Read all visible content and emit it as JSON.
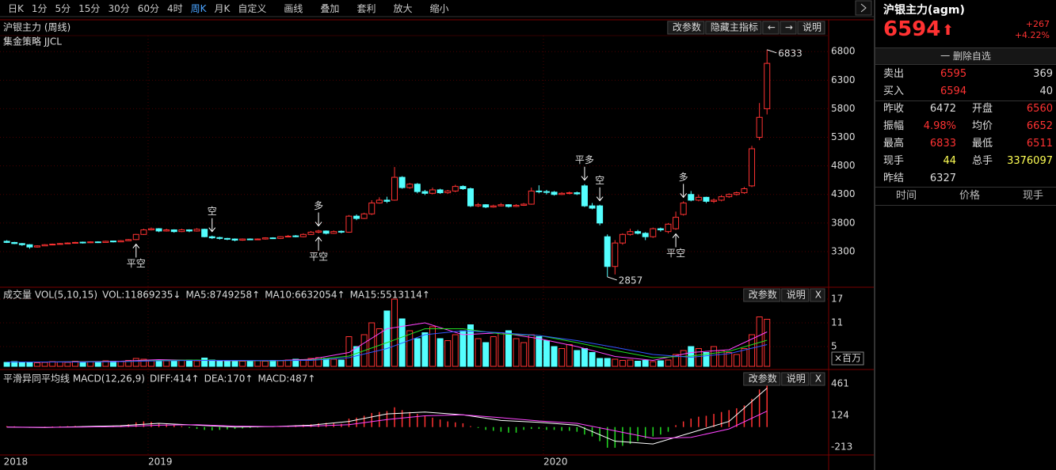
{
  "toolbar": {
    "items": [
      "日K",
      "1分",
      "5分",
      "15分",
      "30分",
      "60分",
      "4时",
      "周K",
      "月K",
      "自定义",
      "画线",
      "叠加",
      "套利",
      "放大",
      "缩小"
    ],
    "active": "周K"
  },
  "chart_data": {
    "type": "candlestick",
    "title": "沪银主力 (周线)",
    "indicator": "集金策略 JJCL",
    "buttons": [
      "改参数",
      "隐藏主指标",
      "←",
      "→",
      "说明"
    ],
    "up_color": "#ff3232",
    "down_color": "#54ffff",
    "grid": true,
    "open": [
      3480,
      3460,
      3440,
      3420,
      3380,
      3400,
      3420,
      3430,
      3440,
      3450,
      3465,
      3455,
      3470,
      3460,
      3485,
      3470,
      3490,
      3510,
      3600,
      3680,
      3700,
      3660,
      3680,
      3650,
      3680,
      3660,
      3690,
      3560,
      3545,
      3530,
      3520,
      3500,
      3520,
      3510,
      3520,
      3540,
      3530,
      3560,
      3575,
      3560,
      3600,
      3640,
      3660,
      3620,
      3655,
      3640,
      3920,
      3880,
      3960,
      4150,
      4200,
      4200,
      4600,
      4420,
      4480,
      4350,
      4320,
      4380,
      4330,
      4360,
      4440,
      4400,
      4100,
      4120,
      4080,
      4100,
      4120,
      4090,
      4110,
      4130,
      4360,
      4350,
      4340,
      4300,
      4320,
      4330,
      4450,
      4100,
      4100,
      3560,
      3040,
      3450,
      3600,
      3650,
      3620,
      3560,
      3700,
      3650,
      3700,
      3950,
      4300,
      4200,
      4250,
      4180,
      4200,
      4260,
      4300,
      4330,
      4450,
      5300,
      5800
    ],
    "high": [
      3500,
      3470,
      3450,
      3430,
      3410,
      3430,
      3440,
      3450,
      3460,
      3470,
      3475,
      3480,
      3480,
      3490,
      3490,
      3500,
      3520,
      3610,
      3700,
      3720,
      3710,
      3700,
      3690,
      3700,
      3690,
      3710,
      3700,
      3580,
      3560,
      3540,
      3530,
      3530,
      3530,
      3530,
      3550,
      3550,
      3570,
      3590,
      3590,
      3620,
      3660,
      3680,
      3670,
      3670,
      3670,
      3940,
      3950,
      3980,
      4200,
      4250,
      4260,
      4780,
      4620,
      4500,
      4500,
      4380,
      4420,
      4400,
      4380,
      4470,
      4460,
      4420,
      4150,
      4130,
      4120,
      4150,
      4130,
      4130,
      4150,
      4420,
      4460,
      4380,
      4360,
      4340,
      4350,
      4350,
      4480,
      4150,
      4120,
      3600,
      3500,
      3620,
      3700,
      3680,
      3640,
      3720,
      3720,
      3800,
      4000,
      4180,
      4360,
      4300,
      4260,
      4230,
      4290,
      4320,
      4350,
      4430,
      5150,
      5900,
      6833
    ],
    "low": [
      3450,
      3430,
      3400,
      3350,
      3370,
      3400,
      3420,
      3430,
      3440,
      3445,
      3440,
      3450,
      3450,
      3460,
      3460,
      3465,
      3485,
      3500,
      3590,
      3670,
      3640,
      3650,
      3630,
      3640,
      3640,
      3650,
      3550,
      3520,
      3510,
      3500,
      3480,
      3490,
      3500,
      3500,
      3510,
      3520,
      3520,
      3550,
      3550,
      3550,
      3590,
      3620,
      3600,
      3610,
      3620,
      3630,
      3850,
      3870,
      3940,
      4140,
      4150,
      4190,
      4400,
      4400,
      4320,
      4290,
      4300,
      4310,
      4310,
      4340,
      4380,
      4080,
      4080,
      4060,
      4070,
      4090,
      4070,
      4080,
      4100,
      4120,
      4320,
      4300,
      4280,
      4290,
      4300,
      4290,
      4080,
      4040,
      3760,
      2857,
      2900,
      3420,
      3580,
      3600,
      3500,
      3540,
      3650,
      3620,
      3680,
      3930,
      4180,
      4180,
      4150,
      4150,
      4180,
      4240,
      4280,
      4310,
      4430,
      5250,
      5700
    ],
    "close": [
      3460,
      3440,
      3420,
      3380,
      3400,
      3420,
      3430,
      3440,
      3450,
      3460,
      3455,
      3470,
      3460,
      3480,
      3470,
      3490,
      3510,
      3600,
      3680,
      3700,
      3660,
      3680,
      3650,
      3680,
      3660,
      3690,
      3560,
      3540,
      3530,
      3520,
      3500,
      3520,
      3510,
      3520,
      3540,
      3530,
      3560,
      3570,
      3560,
      3600,
      3640,
      3660,
      3620,
      3650,
      3640,
      3920,
      3880,
      3960,
      4150,
      4200,
      4180,
      4600,
      4420,
      4480,
      4350,
      4320,
      4380,
      4330,
      4360,
      4440,
      4400,
      4100,
      4120,
      4080,
      4100,
      4120,
      4090,
      4110,
      4130,
      4360,
      4350,
      4340,
      4300,
      4320,
      4330,
      4310,
      4100,
      4060,
      3800,
      3040,
      3450,
      3600,
      3650,
      3620,
      3560,
      3700,
      3680,
      3780,
      3900,
      4150,
      4200,
      4250,
      4180,
      4200,
      4260,
      4300,
      4330,
      4400,
      5100,
      5650,
      6594
    ],
    "xlim": [
      -0.9,
      108
    ],
    "ylim": [
      2690,
      7080
    ],
    "yticks": [
      3300,
      3800,
      4300,
      4800,
      5300,
      5800,
      6300,
      6800
    ],
    "xticks": [
      {
        "value": 0,
        "label": "2018"
      },
      {
        "value": 19,
        "label": "2019"
      },
      {
        "value": 71,
        "label": "2020"
      }
    ],
    "extremes": [
      {
        "value": 6833,
        "at": 100
      },
      {
        "value": 2857,
        "at": 79
      }
    ],
    "signals": [
      {
        "text": "平空",
        "at": 17,
        "side": "below",
        "color": "#ff3232"
      },
      {
        "text": "空",
        "at": 27,
        "side": "above",
        "color": "#22cc22"
      },
      {
        "text": "多",
        "at": 41,
        "side": "above",
        "color": "#ff3232"
      },
      {
        "text": "平空",
        "at": 41,
        "side": "below",
        "color": "#ff3232"
      },
      {
        "text": "平多",
        "at": 76,
        "side": "above",
        "color": "#22cc22"
      },
      {
        "text": "空",
        "at": 78,
        "side": "above",
        "color": "#22cc22"
      },
      {
        "text": "多",
        "at": 89,
        "side": "above",
        "color": "#ff3232"
      },
      {
        "text": "平空",
        "at": 88,
        "side": "below",
        "color": "#ff3232"
      }
    ],
    "volume": {
      "title": "成交量 VOL(5,10,15)",
      "readout": "VOL:11869235↓",
      "unit": "×百万",
      "buttons": [
        "改参数",
        "说明",
        "X"
      ],
      "ylim": [
        0,
        19.6
      ],
      "yticks": [
        5,
        11,
        17
      ],
      "values": [
        1.0,
        1.2,
        1.0,
        1.1,
        0.9,
        1.0,
        1.2,
        1.1,
        1.0,
        1.3,
        1.1,
        1.2,
        1.0,
        1.4,
        1.3,
        1.2,
        1.5,
        2.0,
        1.8,
        1.5,
        1.6,
        1.4,
        1.3,
        1.5,
        1.6,
        1.4,
        2.1,
        1.6,
        1.4,
        1.3,
        1.2,
        1.3,
        1.2,
        1.4,
        1.3,
        1.5,
        1.4,
        1.6,
        1.8,
        1.7,
        2.0,
        2.2,
        2.0,
        1.8,
        1.6,
        7.5,
        5.0,
        8.0,
        11.0,
        9.5,
        14.0,
        17.0,
        12.0,
        9.0,
        7.0,
        8.5,
        10.0,
        7.0,
        6.5,
        8.0,
        9.0,
        10.5,
        7.0,
        6.0,
        7.5,
        8.5,
        9.0,
        7.0,
        6.0,
        8.0,
        7.5,
        6.5,
        5.0,
        4.5,
        5.5,
        4.0,
        4.5,
        3.5,
        2.0,
        2.0,
        1.8,
        1.5,
        1.6,
        1.3,
        1.5,
        1.2,
        1.4,
        1.6,
        3.0,
        4.0,
        5.0,
        4.5,
        3.5,
        5.0,
        4.0,
        3.5,
        3.0,
        4.5,
        8.0,
        12.5,
        11.9
      ],
      "line_x": [
        0,
        5,
        10,
        15,
        20,
        25,
        30,
        35,
        40,
        45,
        50,
        55,
        60,
        65,
        70,
        75,
        80,
        85,
        90,
        95,
        100
      ],
      "lines": [
        {
          "name": "MA5:8749258↑",
          "color": "#ff44ff",
          "values": [
            1.1,
            1.1,
            1.2,
            1.3,
            1.7,
            1.5,
            1.4,
            1.4,
            1.8,
            3.5,
            9.5,
            11,
            8,
            8.5,
            7,
            5,
            2.5,
            1.5,
            3.5,
            4.2,
            8.7
          ]
        },
        {
          "name": "MA10:6632054↑",
          "color": "#22dd22",
          "values": [
            1.1,
            1.1,
            1.15,
            1.2,
            1.5,
            1.6,
            1.45,
            1.4,
            1.6,
            2.6,
            6,
            9.5,
            9.5,
            8.2,
            7.8,
            6,
            4,
            2.2,
            2.6,
            3.8,
            6.6
          ]
        },
        {
          "name": "MA15:5513114↑",
          "color": "#3355ff",
          "values": [
            1.1,
            1.1,
            1.1,
            1.2,
            1.4,
            1.5,
            1.5,
            1.45,
            1.5,
            2.2,
            4.5,
            8,
            9,
            8.5,
            7.8,
            6.5,
            4.8,
            3,
            2.3,
            3.2,
            5.5
          ]
        }
      ]
    },
    "macd": {
      "title": "平滑异同平均线 MACD(12,26,9)",
      "buttons": [
        "改参数",
        "说明",
        "X"
      ],
      "ylim": [
        -297,
        587
      ],
      "yticks": [
        -213,
        124,
        461
      ],
      "histogram": {
        "name": "MACD:487↑",
        "color": "#22dd22",
        "up_color": "#ff3232",
        "down_color": "#22dd22",
        "values": [
          10,
          8,
          -5,
          -8,
          -6,
          4,
          6,
          8,
          10,
          12,
          10,
          8,
          10,
          12,
          15,
          20,
          30,
          50,
          60,
          55,
          40,
          30,
          20,
          10,
          -10,
          -20,
          -30,
          -35,
          -30,
          -25,
          -20,
          -15,
          -10,
          -5,
          0,
          5,
          10,
          15,
          20,
          25,
          30,
          40,
          45,
          40,
          35,
          90,
          100,
          120,
          150,
          160,
          170,
          210,
          180,
          160,
          140,
          120,
          100,
          80,
          60,
          50,
          40,
          10,
          -10,
          -30,
          -40,
          -50,
          -60,
          -60,
          -30,
          -20,
          -20,
          -30,
          -30,
          -40,
          -40,
          -50,
          -80,
          -100,
          -150,
          -220,
          -220,
          -200,
          -180,
          -150,
          -120,
          -100,
          -80,
          -50,
          20,
          60,
          90,
          110,
          120,
          140,
          160,
          180,
          200,
          230,
          300,
          400,
          487
        ]
      },
      "line_x": [
        0,
        5,
        10,
        15,
        20,
        25,
        30,
        35,
        40,
        45,
        50,
        55,
        60,
        65,
        70,
        75,
        80,
        85,
        90,
        95,
        100
      ],
      "lines": [
        {
          "name": "DIFF:414↑",
          "color": "#ffffff",
          "values": [
            0,
            -5,
            5,
            15,
            40,
            20,
            0,
            5,
            20,
            60,
            140,
            160,
            130,
            70,
            50,
            20,
            -150,
            -180,
            -60,
            60,
            414
          ]
        },
        {
          "name": "DEA:170↑",
          "color": "#ff44ff",
          "values": [
            0,
            -2,
            0,
            5,
            20,
            25,
            10,
            5,
            10,
            25,
            80,
            120,
            130,
            100,
            65,
            40,
            -40,
            -120,
            -110,
            -20,
            170
          ]
        }
      ]
    }
  },
  "quote": {
    "name": "沪银主力(agm)",
    "price": 6594,
    "arrow": "⬆",
    "change": "+267",
    "change_pct": "+4.22%",
    "delete_button": "一 删除自选",
    "book": [
      [
        "卖出",
        "6595",
        "369"
      ],
      [
        "买入",
        "6594",
        "40"
      ]
    ],
    "stats": [
      [
        "昨收",
        "6472",
        "开盘",
        "6560"
      ],
      [
        "振幅",
        "4.98%",
        "均价",
        "6652"
      ],
      [
        "最高",
        "6833",
        "最低",
        "6511"
      ],
      [
        "现手",
        "44",
        "总手",
        "3376097"
      ],
      [
        "昨结",
        "6327"
      ]
    ],
    "table_header": [
      "时间",
      "价格",
      "现手"
    ]
  }
}
